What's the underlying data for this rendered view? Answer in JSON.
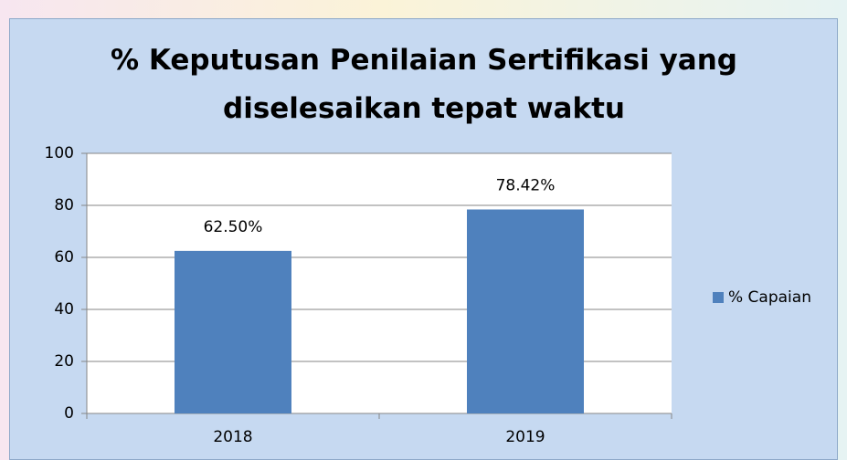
{
  "chart_data": {
    "type": "bar",
    "title": "% Keputusan Penilaian Sertifikasi yang diselesaikan tepat waktu",
    "categories": [
      "2018",
      "2019"
    ],
    "series": [
      {
        "name": "% Capaian",
        "color": "#4f81bd",
        "values": [
          62.5,
          78.42
        ],
        "value_labels": [
          "62.50%",
          "78.42%"
        ]
      }
    ],
    "ylim": [
      0,
      100
    ],
    "yticks": [
      0,
      20,
      40,
      60,
      80,
      100
    ],
    "grid": true,
    "legend": "right"
  }
}
